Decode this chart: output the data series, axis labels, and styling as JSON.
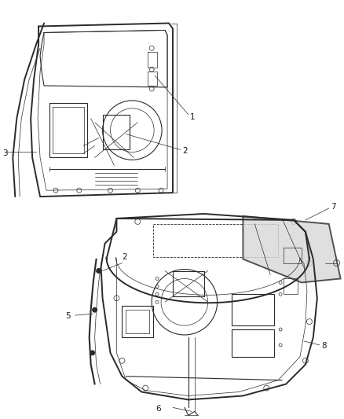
{
  "bg_color": "#ffffff",
  "line_color": "#2a2a2a",
  "label_color": "#1a1a1a",
  "lw_outer": 1.4,
  "lw_inner": 0.8,
  "lw_thin": 0.5,
  "figsize": [
    4.38,
    5.33
  ],
  "dpi": 100
}
